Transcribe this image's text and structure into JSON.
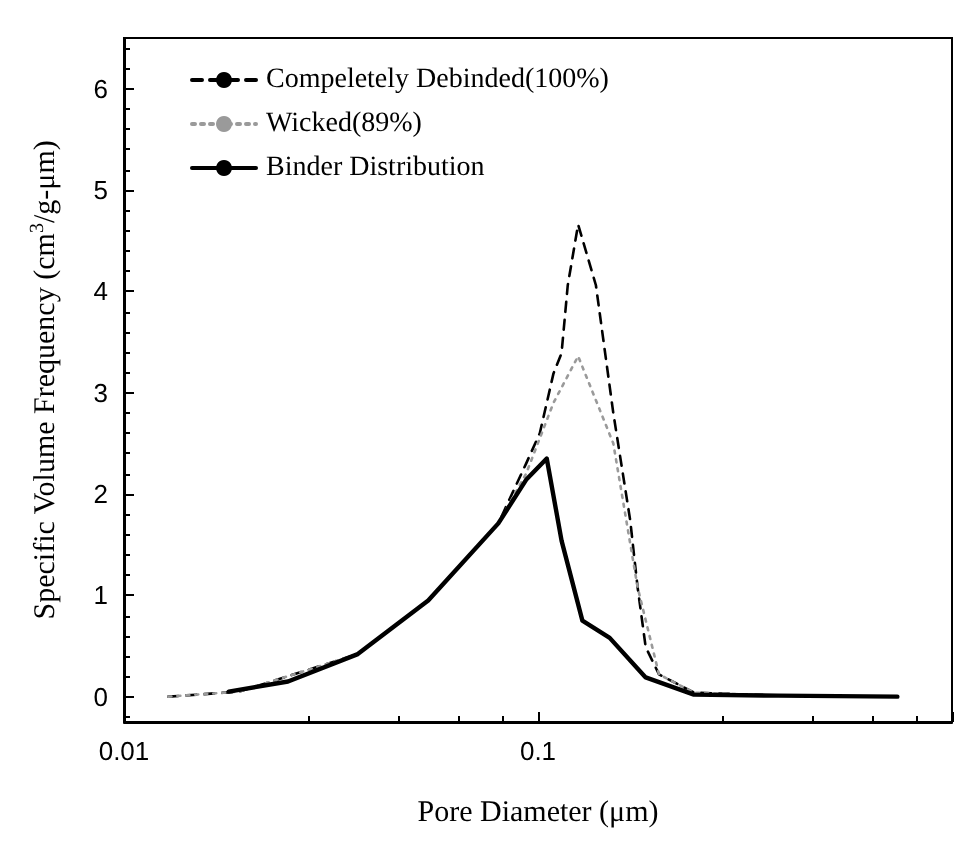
{
  "chart_data": {
    "type": "line",
    "xlabel": "Pore Diameter (μm)",
    "ylabel": "Specific Volume Frequency (cm$^{3}$/g-μm)",
    "log": "x",
    "xlim": [
      0.01,
      1
    ],
    "xticks": [
      0.01,
      0.1,
      {
        "value": 1,
        "label": null
      }
    ],
    "ylim": [
      -0.25,
      6.5
    ],
    "yticks": [
      0,
      1,
      2,
      3,
      4,
      5,
      6
    ],
    "grid": false,
    "legend": "top left",
    "marker": "none",
    "series": [
      {
        "name": "Compeletely Debinded(100%)",
        "color": "#000000",
        "line_style": "dashed",
        "x": [
          0.0128,
          0.019,
          0.0367,
          0.0543,
          0.0802,
          0.0936,
          0.101,
          0.109,
          0.114,
          0.118,
          0.125,
          0.138,
          0.152,
          0.167,
          0.174,
          0.182,
          0.196,
          0.238,
          0.38,
          0.738
        ],
        "values": [
          0,
          0.05,
          0.42,
          0.95,
          1.71,
          2.3,
          2.6,
          3.19,
          3.39,
          4.06,
          4.66,
          4.06,
          2.8,
          1.74,
          1.08,
          0.49,
          0.22,
          0.04,
          0.01,
          0
        ]
      },
      {
        "name": "Wicked(89%)",
        "color": "#9a9a9a",
        "line_style": "dotted",
        "x": [
          0.0128,
          0.019,
          0.0367,
          0.0543,
          0.0802,
          0.0936,
          0.109,
          0.125,
          0.152,
          0.174,
          0.196,
          0.238,
          0.38,
          0.738
        ],
        "values": [
          0,
          0.05,
          0.42,
          0.95,
          1.71,
          2.2,
          2.9,
          3.36,
          2.5,
          1.08,
          0.22,
          0.04,
          0.01,
          0
        ]
      },
      {
        "name": "Binder Distribution",
        "color": "#000000",
        "line_style": "solid",
        "x": [
          0.0179,
          0.0249,
          0.0367,
          0.0543,
          0.0802,
          0.0936,
          0.105,
          0.114,
          0.128,
          0.149,
          0.182,
          0.238,
          0.38,
          0.738
        ],
        "values": [
          0.05,
          0.15,
          0.42,
          0.95,
          1.71,
          2.14,
          2.35,
          1.54,
          0.75,
          0.58,
          0.19,
          0.02,
          0.01,
          0
        ]
      }
    ]
  }
}
